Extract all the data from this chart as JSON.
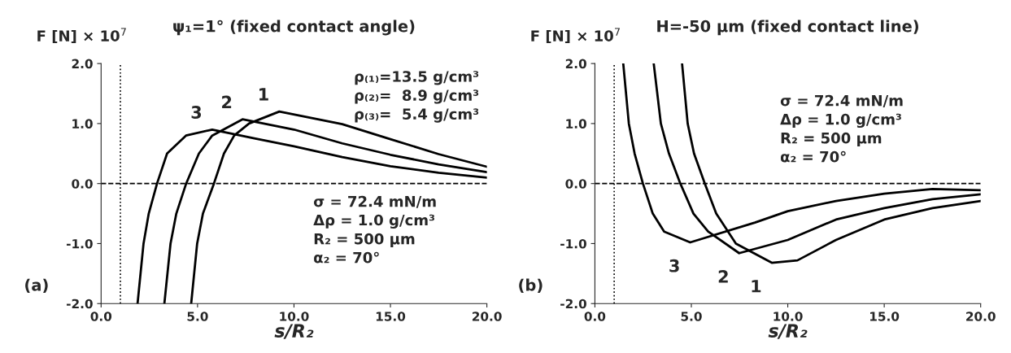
{
  "chart_data": [
    {
      "type": "line",
      "title": "ψ₁=1° (fixed contact angle)",
      "ylabel": "F [N] × 10$^{7}$",
      "xlabel": "s/R₂",
      "xlim": [
        0,
        20
      ],
      "ylim": [
        -2,
        2
      ],
      "xticks": [
        {
          "value": 0,
          "label": "0.0"
        },
        {
          "value": 5,
          "label": "5.0"
        },
        {
          "value": 10,
          "label": "10.0"
        },
        {
          "value": 15,
          "label": "15.0"
        },
        {
          "value": 20,
          "label": "20.0"
        }
      ],
      "yticks": [
        {
          "value": -2,
          "label": "-2.0"
        },
        {
          "value": -1,
          "label": "-1.0"
        },
        {
          "value": 0,
          "label": "0.0"
        },
        {
          "value": 1,
          "label": "1.0"
        },
        {
          "value": 2,
          "label": "2.0"
        }
      ],
      "series": [
        {
          "name": "1",
          "color": "#000000",
          "x": [
            4.67,
            4.98,
            5.28,
            5.85,
            6.37,
            6.9,
            7.67,
            9.24,
            12.5,
            15,
            17.5,
            20
          ],
          "values": [
            -2.0,
            -1.0,
            -0.5,
            0,
            0.5,
            0.8,
            1.0,
            1.2,
            0.99,
            0.74,
            0.49,
            0.28
          ]
        },
        {
          "name": "2",
          "color": "#000000",
          "x": [
            3.28,
            3.6,
            3.9,
            4.41,
            5.07,
            5.76,
            7.33,
            10,
            12.5,
            15,
            17.5,
            20
          ],
          "values": [
            -2.0,
            -1.0,
            -0.5,
            0,
            0.5,
            0.8,
            1.07,
            0.9,
            0.67,
            0.48,
            0.32,
            0.19
          ]
        },
        {
          "name": "3",
          "color": "#000000",
          "x": [
            1.89,
            2.2,
            2.47,
            2.9,
            3.42,
            4.4,
            5.76,
            8,
            10,
            12.5,
            15,
            17.5,
            20
          ],
          "values": [
            -2.0,
            -1.0,
            -0.5,
            0,
            0.5,
            0.8,
            0.9,
            0.75,
            0.62,
            0.44,
            0.29,
            0.18,
            0.1
          ]
        }
      ],
      "ref_lines": [
        {
          "axis": "x",
          "value": 1,
          "line_style": "dotted"
        },
        {
          "axis": "y",
          "value": 0,
          "line_style": "dashed"
        }
      ],
      "grid": false,
      "line_style": "solid",
      "marker": "none",
      "annotations": [
        "ρ₍₁₎=13.5 g/cm³\nρ₍₂₎=  8.9 g/cm³\nρ₍₃₎=  5.4 g/cm³",
        "σ = 72.4 mN/m\nΔρ = 1.0 g/cm³\nR₂ = 500 μm\nα₂ = 70°",
        "(a)"
      ]
    },
    {
      "type": "line",
      "title": "H=-50 μm (fixed contact line)",
      "ylabel": "F [N] × 10$^{7}$",
      "xlabel": "s/R₂",
      "xlim": [
        0,
        20
      ],
      "ylim": [
        -2,
        2
      ],
      "xticks": [
        {
          "value": 0,
          "label": "0.0"
        },
        {
          "value": 5,
          "label": "5.0"
        },
        {
          "value": 10,
          "label": "10.0"
        },
        {
          "value": 15,
          "label": "15.0"
        },
        {
          "value": 20,
          "label": "20.0"
        }
      ],
      "yticks": [
        {
          "value": -2,
          "label": "-2.0"
        },
        {
          "value": -1,
          "label": "-1.0"
        },
        {
          "value": 0,
          "label": "0.0"
        },
        {
          "value": 1,
          "label": "1.0"
        },
        {
          "value": 2,
          "label": "2.0"
        }
      ],
      "series": [
        {
          "name": "1",
          "color": "#000000",
          "x": [
            4.52,
            4.81,
            5.14,
            5.7,
            6.29,
            7.31,
            9.17,
            10.5,
            12.5,
            15,
            17.5,
            20
          ],
          "values": [
            2.0,
            1.0,
            0.5,
            0,
            -0.5,
            -1.0,
            -1.32,
            -1.28,
            -0.94,
            -0.6,
            -0.41,
            -0.29
          ]
        },
        {
          "name": "2",
          "color": "#000000",
          "x": [
            3.05,
            3.42,
            3.84,
            4.43,
            5.11,
            5.87,
            7.48,
            10,
            12.5,
            15,
            17.5,
            20
          ],
          "values": [
            2.0,
            1.0,
            0.5,
            0,
            -0.5,
            -0.8,
            -1.16,
            -0.94,
            -0.6,
            -0.41,
            -0.26,
            -0.18
          ]
        },
        {
          "name": "3",
          "color": "#000000",
          "x": [
            1.47,
            1.76,
            2.06,
            2.49,
            3.0,
            3.59,
            4.94,
            8.3,
            10,
            12.5,
            15,
            17.5,
            20
          ],
          "values": [
            2.0,
            1.0,
            0.5,
            0,
            -0.5,
            -0.8,
            -0.98,
            -0.65,
            -0.46,
            -0.29,
            -0.17,
            -0.09,
            -0.11
          ]
        }
      ],
      "ref_lines": [
        {
          "axis": "x",
          "value": 1,
          "line_style": "dotted"
        },
        {
          "axis": "y",
          "value": 0,
          "line_style": "dashed"
        }
      ],
      "grid": false,
      "line_style": "solid",
      "marker": "none",
      "annotations": [
        "σ = 72.4 mN/m\nΔρ = 1.0 g/cm³\nR₂ = 500 μm\nα₂ = 70°",
        "(b)"
      ]
    }
  ]
}
